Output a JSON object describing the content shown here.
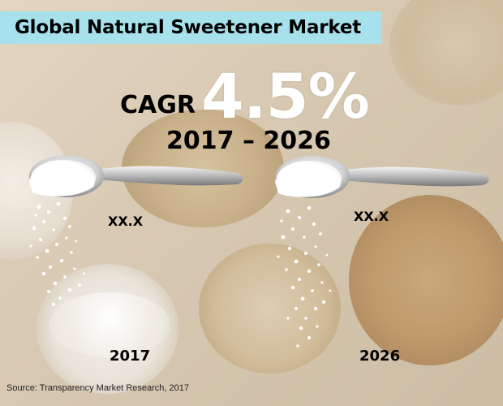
{
  "header": {
    "title": "Global Natural Sweetener Market",
    "bar_color": "#a6e1ec"
  },
  "cagr": {
    "label": "CAGR",
    "value": "4.5%",
    "period": "2017 – 2026"
  },
  "left_spoon": {
    "value_label": "XX.X",
    "year": "2017"
  },
  "right_spoon": {
    "value_label": "XX.X",
    "year": "2026"
  },
  "footer": {
    "source": "Source: Transparency Market Research, 2017"
  },
  "icons": [
    "spoon-icon",
    "sugar-pile-icon",
    "sweetener-bowl-icon"
  ]
}
